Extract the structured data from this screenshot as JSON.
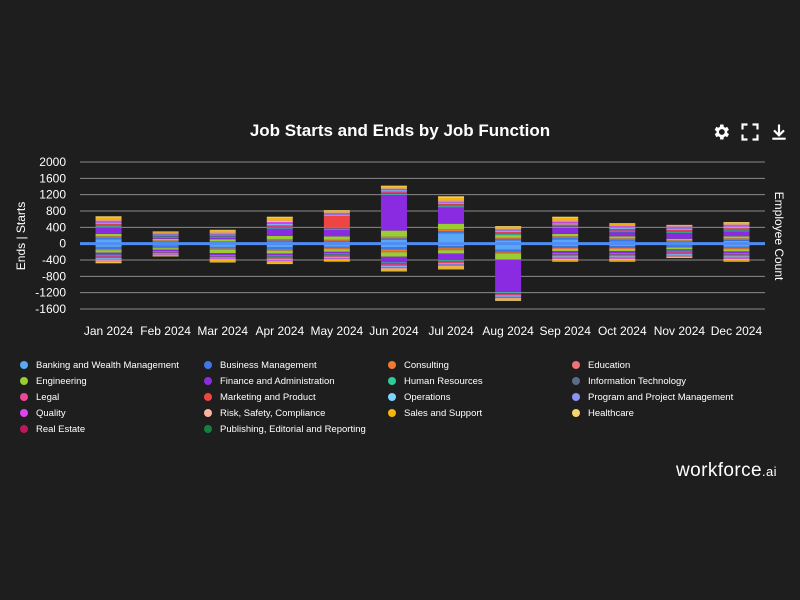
{
  "toolbar": {
    "settings": "gear-icon",
    "fullscreen": "expand-icon",
    "download": "download-icon"
  },
  "brand": {
    "name": "workforce",
    "suffix": ".ai"
  },
  "chart_data": {
    "type": "bar",
    "title": "Job Starts and Ends by Job Function",
    "ylabel": "Ends | Starts",
    "y2label": "Employee Count",
    "ylim": [
      -1600,
      2000
    ],
    "yticks": [
      2000,
      1600,
      1200,
      800,
      400,
      0,
      -400,
      -800,
      -1200,
      -1600
    ],
    "grid": true,
    "legend_position": "bottom",
    "categories": [
      "Jan 2024",
      "Feb 2024",
      "Mar 2024",
      "Apr 2024",
      "May 2024",
      "Jun 2024",
      "Jul 2024",
      "Aug 2024",
      "Sep 2024",
      "Oct 2024",
      "Nov 2024",
      "Dec 2024"
    ],
    "employee_count_line": {
      "color": "#4f8df5",
      "values": [
        0,
        0,
        0,
        0,
        0,
        0,
        0,
        0,
        0,
        0,
        0,
        0
      ]
    },
    "series": [
      {
        "name": "Banking and Wealth Management",
        "color": "#5aa7f5",
        "starts": [
          110,
          30,
          20,
          40,
          40,
          90,
          250,
          80,
          100,
          60,
          30,
          70
        ],
        "ends": [
          -80,
          -50,
          -80,
          -90,
          -70,
          -90,
          -60,
          -150,
          -60,
          -60,
          -40,
          -70
        ]
      },
      {
        "name": "Business Management",
        "color": "#3f78e6",
        "starts": [
          40,
          30,
          20,
          40,
          30,
          40,
          60,
          40,
          50,
          40,
          30,
          30
        ],
        "ends": [
          -50,
          -40,
          -40,
          -50,
          -40,
          -50,
          -50,
          -60,
          -40,
          -40,
          -40,
          -40
        ]
      },
      {
        "name": "Consulting",
        "color": "#f07a32",
        "starts": [
          20,
          10,
          10,
          20,
          20,
          30,
          30,
          20,
          20,
          20,
          10,
          20
        ],
        "ends": [
          -20,
          -10,
          -20,
          -20,
          -20,
          -60,
          -40,
          -30,
          -20,
          -20,
          -10,
          -20
        ]
      },
      {
        "name": "Education",
        "color": "#f07178",
        "starts": [
          10,
          10,
          10,
          10,
          10,
          10,
          10,
          10,
          10,
          10,
          10,
          10
        ],
        "ends": [
          -10,
          -10,
          -10,
          -10,
          -10,
          -10,
          -10,
          -10,
          -10,
          -10,
          -10,
          -10
        ]
      },
      {
        "name": "Engineering",
        "color": "#9acd32",
        "starts": [
          60,
          40,
          50,
          80,
          80,
          150,
          140,
          60,
          60,
          50,
          40,
          50
        ],
        "ends": [
          -60,
          -40,
          -80,
          -70,
          -60,
          -110,
          -80,
          -140,
          -50,
          -50,
          -40,
          -50
        ]
      },
      {
        "name": "Finance and Administration",
        "color": "#8a2be2",
        "starts": [
          160,
          30,
          40,
          180,
          160,
          880,
          400,
          0,
          150,
          100,
          140,
          120
        ],
        "ends": [
          -50,
          -30,
          -50,
          -50,
          -40,
          -140,
          -160,
          -800,
          -50,
          -50,
          -30,
          -40
        ]
      },
      {
        "name": "Human Resources",
        "color": "#2ecc9a",
        "starts": [
          20,
          20,
          20,
          20,
          20,
          20,
          20,
          20,
          20,
          20,
          20,
          20
        ],
        "ends": [
          -20,
          -20,
          -20,
          -20,
          -20,
          -20,
          -20,
          -20,
          -20,
          -20,
          -20,
          -20
        ]
      },
      {
        "name": "Information Technology",
        "color": "#5c6b8a",
        "starts": [
          20,
          20,
          20,
          20,
          20,
          20,
          20,
          20,
          20,
          20,
          20,
          20
        ],
        "ends": [
          -20,
          -20,
          -20,
          -20,
          -20,
          -20,
          -20,
          -20,
          -20,
          -20,
          -20,
          -20
        ]
      },
      {
        "name": "Legal",
        "color": "#ec4899",
        "starts": [
          20,
          10,
          10,
          20,
          20,
          20,
          20,
          20,
          20,
          20,
          20,
          20
        ],
        "ends": [
          -20,
          -10,
          -10,
          -20,
          -20,
          -20,
          -20,
          -20,
          -20,
          -20,
          -20,
          -20
        ]
      },
      {
        "name": "Marketing and Product",
        "color": "#ef4444",
        "starts": [
          20,
          10,
          10,
          20,
          280,
          20,
          20,
          20,
          20,
          20,
          20,
          20
        ],
        "ends": [
          -20,
          -10,
          -10,
          -20,
          -20,
          -20,
          -20,
          -20,
          -20,
          -20,
          -20,
          -20
        ]
      },
      {
        "name": "Operations",
        "color": "#7dd3fc",
        "starts": [
          20,
          10,
          10,
          20,
          20,
          20,
          20,
          20,
          20,
          20,
          20,
          20
        ],
        "ends": [
          -20,
          -10,
          -10,
          -20,
          -20,
          -20,
          -20,
          -20,
          -20,
          -20,
          -20,
          -20
        ]
      },
      {
        "name": "Program and Project Management",
        "color": "#8b93f5",
        "starts": [
          20,
          10,
          10,
          20,
          20,
          20,
          20,
          20,
          20,
          20,
          20,
          20
        ],
        "ends": [
          -20,
          -10,
          -10,
          -20,
          -20,
          -20,
          -20,
          -20,
          -20,
          -20,
          -20,
          -20
        ]
      },
      {
        "name": "Quality",
        "color": "#d946ef",
        "starts": [
          40,
          20,
          20,
          40,
          30,
          20,
          20,
          20,
          30,
          30,
          40,
          40
        ],
        "ends": [
          -20,
          -10,
          -20,
          -20,
          -20,
          -20,
          -20,
          -20,
          -20,
          -20,
          -20,
          -20
        ]
      },
      {
        "name": "Risk, Safety, Compliance",
        "color": "#fbb4a0",
        "starts": [
          30,
          20,
          30,
          40,
          20,
          20,
          30,
          20,
          30,
          20,
          10,
          20
        ],
        "ends": [
          -20,
          -10,
          -20,
          -20,
          -20,
          -20,
          -20,
          -20,
          -20,
          -20,
          -10,
          -20
        ]
      },
      {
        "name": "Sales and Support",
        "color": "#f5b50a",
        "starts": [
          50,
          20,
          40,
          60,
          30,
          40,
          60,
          40,
          60,
          30,
          20,
          30
        ],
        "ends": [
          -30,
          -20,
          -40,
          -30,
          -30,
          -40,
          -50,
          -30,
          -30,
          -30,
          -20,
          -30
        ]
      },
      {
        "name": "Healthcare",
        "color": "#f8d56b",
        "starts": [
          30,
          10,
          20,
          30,
          20,
          20,
          40,
          20,
          30,
          20,
          10,
          20
        ],
        "ends": [
          -20,
          -10,
          -20,
          -20,
          -10,
          -20,
          -20,
          -20,
          -20,
          -20,
          -10,
          -20
        ]
      },
      {
        "name": "Real Estate",
        "color": "#be185d",
        "starts": [
          0,
          0,
          0,
          0,
          0,
          0,
          0,
          0,
          0,
          0,
          0,
          0
        ],
        "ends": [
          0,
          0,
          0,
          0,
          0,
          0,
          0,
          0,
          0,
          0,
          0,
          0
        ]
      },
      {
        "name": "Publishing, Editorial and Reporting",
        "color": "#15803d",
        "starts": [
          0,
          0,
          0,
          0,
          0,
          0,
          0,
          0,
          0,
          0,
          0,
          0
        ],
        "ends": [
          0,
          0,
          0,
          0,
          0,
          0,
          0,
          0,
          0,
          0,
          0,
          0
        ]
      }
    ]
  }
}
